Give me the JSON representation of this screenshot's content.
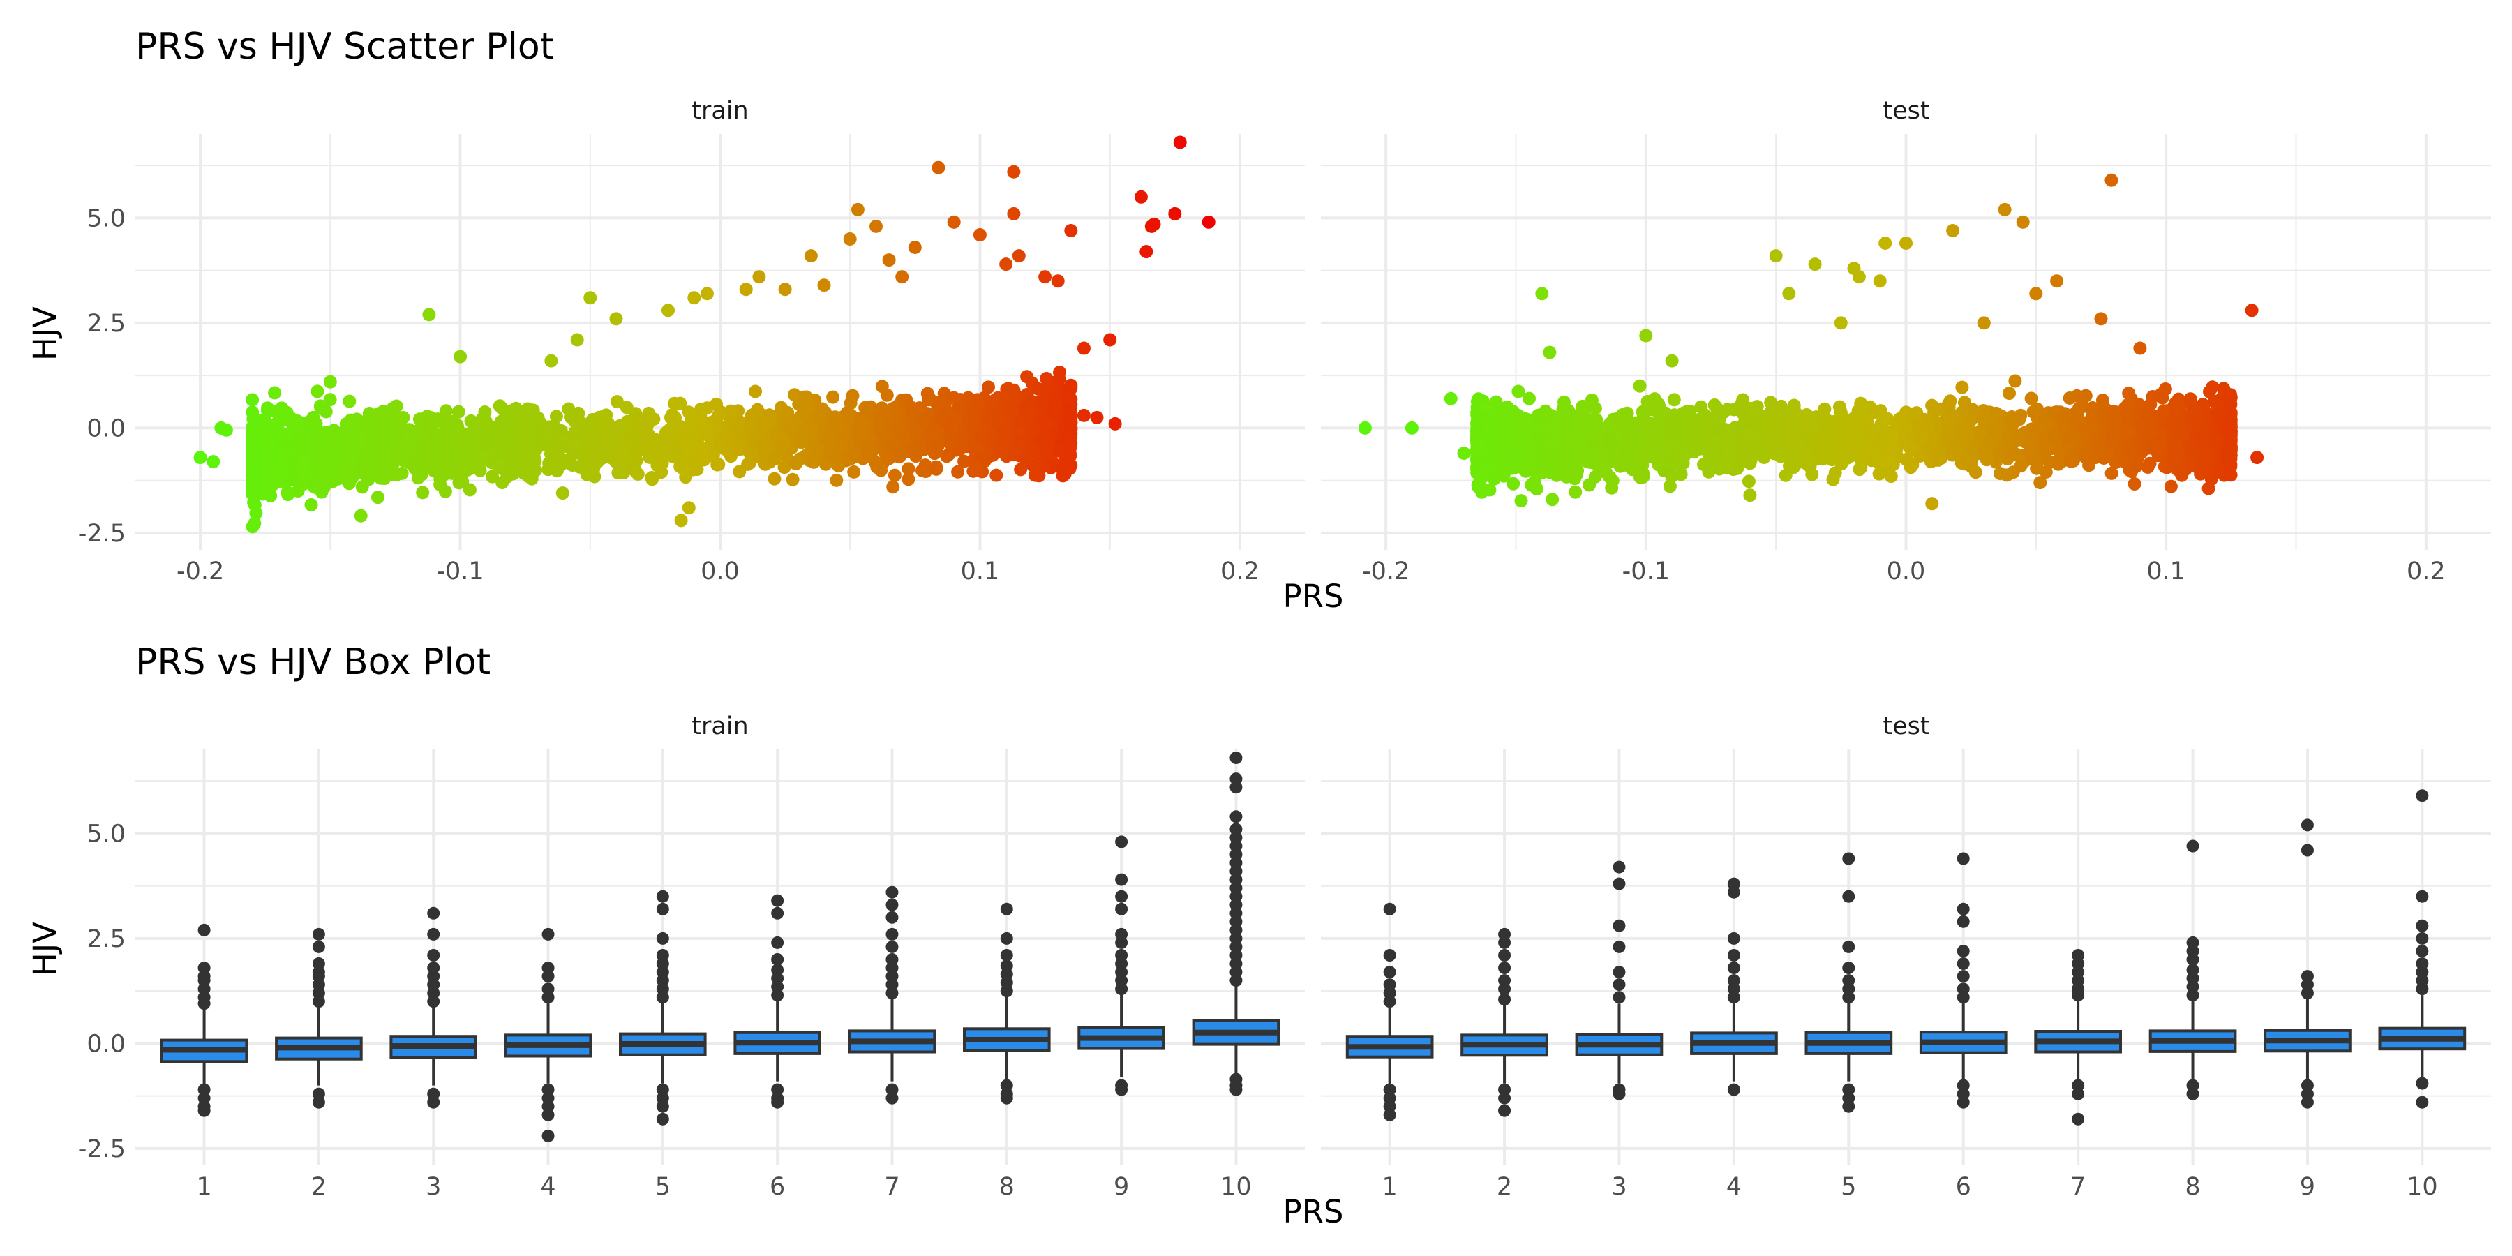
{
  "chart_data": [
    {
      "type": "scatter",
      "title": "PRS vs HJV Scatter Plot",
      "xlabel": "PRS",
      "ylabel": "HJV",
      "grid": true,
      "color_scale": {
        "low": "#5af50a",
        "mid": "#c4b400",
        "high": "#f00000",
        "mapped_to": "PRS"
      },
      "xlim": [
        -0.225,
        0.225
      ],
      "ylim": [
        -2.9,
        7.0
      ],
      "xticks": [
        -0.2,
        -0.1,
        0.0,
        0.1,
        0.2
      ],
      "xtick_labels": [
        "-0.2",
        "-0.1",
        "0.0",
        "0.1",
        "0.2"
      ],
      "yticks": [
        -2.5,
        0.0,
        2.5,
        5.0
      ],
      "ytick_labels": [
        "-2.5",
        "0.0",
        "2.5",
        "5.0"
      ],
      "panels": [
        {
          "label": "train",
          "cloud": {
            "x_range": [
              -0.18,
              0.135
            ],
            "slope": 4.5,
            "spread": 0.42
          },
          "points": [
            {
              "x": -0.2,
              "y": -0.7
            },
            {
              "x": -0.195,
              "y": -0.8
            },
            {
              "x": -0.19,
              "y": -0.05
            },
            {
              "x": -0.192,
              "y": 0.0
            },
            {
              "x": -0.15,
              "y": 1.1
            },
            {
              "x": -0.112,
              "y": 2.7
            },
            {
              "x": -0.1,
              "y": 1.7
            },
            {
              "x": -0.065,
              "y": 1.6
            },
            {
              "x": -0.055,
              "y": 2.1
            },
            {
              "x": -0.05,
              "y": 3.1
            },
            {
              "x": -0.04,
              "y": 2.6
            },
            {
              "x": -0.02,
              "y": 2.8
            },
            {
              "x": -0.015,
              "y": -2.2
            },
            {
              "x": -0.012,
              "y": -1.9
            },
            {
              "x": -0.01,
              "y": 3.1
            },
            {
              "x": -0.005,
              "y": 3.2
            },
            {
              "x": 0.01,
              "y": 3.3
            },
            {
              "x": 0.015,
              "y": 3.6
            },
            {
              "x": 0.025,
              "y": 3.3
            },
            {
              "x": 0.035,
              "y": 4.1
            },
            {
              "x": 0.04,
              "y": 3.4
            },
            {
              "x": 0.05,
              "y": 4.5
            },
            {
              "x": 0.053,
              "y": 5.2
            },
            {
              "x": 0.06,
              "y": 4.8
            },
            {
              "x": 0.065,
              "y": 4.0
            },
            {
              "x": 0.07,
              "y": 3.6
            },
            {
              "x": 0.075,
              "y": 4.3
            },
            {
              "x": 0.084,
              "y": 6.2
            },
            {
              "x": 0.09,
              "y": 4.9
            },
            {
              "x": 0.1,
              "y": 4.6
            },
            {
              "x": 0.098,
              "y": -0.9
            },
            {
              "x": 0.11,
              "y": 3.9
            },
            {
              "x": 0.113,
              "y": 5.1
            },
            {
              "x": 0.113,
              "y": 6.1
            },
            {
              "x": 0.115,
              "y": 4.1
            },
            {
              "x": 0.125,
              "y": 3.6
            },
            {
              "x": 0.13,
              "y": 3.5
            },
            {
              "x": 0.135,
              "y": 4.7
            },
            {
              "x": 0.14,
              "y": 1.9
            },
            {
              "x": 0.15,
              "y": 2.1
            },
            {
              "x": 0.14,
              "y": 0.3
            },
            {
              "x": 0.145,
              "y": 0.25
            },
            {
              "x": 0.152,
              "y": 0.1
            },
            {
              "x": 0.162,
              "y": 5.5
            },
            {
              "x": 0.164,
              "y": 4.2
            },
            {
              "x": 0.166,
              "y": 4.8
            },
            {
              "x": 0.167,
              "y": 4.85
            },
            {
              "x": 0.175,
              "y": 5.1
            },
            {
              "x": 0.177,
              "y": 6.8
            },
            {
              "x": 0.188,
              "y": 4.9
            }
          ]
        },
        {
          "label": "test",
          "cloud": {
            "x_range": [
              -0.165,
              0.125
            ],
            "slope": 1.5,
            "spread": 0.4
          },
          "points": [
            {
              "x": -0.208,
              "y": 0.0
            },
            {
              "x": -0.19,
              "y": 0.0
            },
            {
              "x": -0.175,
              "y": 0.7
            },
            {
              "x": -0.17,
              "y": -0.6
            },
            {
              "x": -0.14,
              "y": 3.2
            },
            {
              "x": -0.137,
              "y": 1.8
            },
            {
              "x": -0.136,
              "y": -1.7
            },
            {
              "x": -0.1,
              "y": 2.2
            },
            {
              "x": -0.09,
              "y": 1.6
            },
            {
              "x": -0.06,
              "y": -1.6
            },
            {
              "x": -0.05,
              "y": 4.1
            },
            {
              "x": -0.045,
              "y": 3.2
            },
            {
              "x": -0.035,
              "y": 3.9
            },
            {
              "x": -0.025,
              "y": 2.5
            },
            {
              "x": -0.02,
              "y": 3.8
            },
            {
              "x": -0.018,
              "y": 3.6
            },
            {
              "x": -0.01,
              "y": 3.5
            },
            {
              "x": -0.008,
              "y": 4.4
            },
            {
              "x": 0.0,
              "y": 4.4
            },
            {
              "x": 0.01,
              "y": -1.8
            },
            {
              "x": 0.018,
              "y": 4.7
            },
            {
              "x": 0.03,
              "y": 2.5
            },
            {
              "x": 0.038,
              "y": 5.2
            },
            {
              "x": 0.045,
              "y": 4.9
            },
            {
              "x": 0.05,
              "y": 3.2
            },
            {
              "x": 0.058,
              "y": 3.5
            },
            {
              "x": 0.079,
              "y": 5.9
            },
            {
              "x": 0.075,
              "y": 2.6
            },
            {
              "x": 0.09,
              "y": 1.9
            },
            {
              "x": 0.12,
              "y": 0.5
            },
            {
              "x": 0.122,
              "y": 0.3
            },
            {
              "x": 0.133,
              "y": 2.8
            },
            {
              "x": 0.135,
              "y": -0.7
            }
          ]
        }
      ]
    },
    {
      "type": "box",
      "title": "PRS vs HJV Box Plot",
      "xlabel": "PRS",
      "ylabel": "HJV",
      "grid": true,
      "box_color": "#2a8be8",
      "line_color": "#333333",
      "categories": [
        "1",
        "2",
        "3",
        "4",
        "5",
        "6",
        "7",
        "8",
        "9",
        "10"
      ],
      "ylim": [
        -2.9,
        7.0
      ],
      "yticks": [
        -2.5,
        0.0,
        2.5,
        5.0
      ],
      "ytick_labels": [
        "-2.5",
        "0.0",
        "2.5",
        "5.0"
      ],
      "panels": [
        {
          "label": "train",
          "boxes": [
            {
              "category": "1",
              "q1": -0.43,
              "median": -0.15,
              "q3": 0.08,
              "lower": -1.0,
              "upper": 0.85,
              "outliers": [
                0.95,
                1.1,
                1.3,
                1.5,
                1.6,
                1.8,
                2.7,
                -1.1,
                -1.3,
                -1.5,
                -1.6
              ]
            },
            {
              "category": "2",
              "q1": -0.37,
              "median": -0.1,
              "q3": 0.13,
              "lower": -1.0,
              "upper": 0.9,
              "outliers": [
                1.0,
                1.2,
                1.4,
                1.6,
                1.7,
                1.9,
                2.3,
                2.6,
                -1.2,
                -1.4
              ]
            },
            {
              "category": "3",
              "q1": -0.33,
              "median": -0.06,
              "q3": 0.17,
              "lower": -1.0,
              "upper": 0.95,
              "outliers": [
                1.0,
                1.2,
                1.4,
                1.6,
                1.8,
                2.1,
                2.6,
                3.1,
                -1.2,
                -1.4
              ]
            },
            {
              "category": "4",
              "q1": -0.3,
              "median": -0.04,
              "q3": 0.2,
              "lower": -0.95,
              "upper": 1.0,
              "outliers": [
                1.1,
                1.3,
                1.6,
                1.8,
                2.6,
                -1.1,
                -1.3,
                -1.5,
                -1.7,
                -2.2
              ]
            },
            {
              "category": "5",
              "q1": -0.27,
              "median": -0.01,
              "q3": 0.23,
              "lower": -0.95,
              "upper": 1.0,
              "outliers": [
                1.1,
                1.3,
                1.5,
                1.7,
                1.9,
                2.1,
                2.5,
                3.2,
                3.5,
                -1.1,
                -1.3,
                -1.5,
                -1.8
              ]
            },
            {
              "category": "6",
              "q1": -0.24,
              "median": 0.02,
              "q3": 0.26,
              "lower": -0.9,
              "upper": 1.05,
              "outliers": [
                1.15,
                1.35,
                1.55,
                1.75,
                2.0,
                2.4,
                3.1,
                3.4,
                -1.1,
                -1.3,
                -1.4
              ]
            },
            {
              "category": "7",
              "q1": -0.2,
              "median": 0.05,
              "q3": 0.3,
              "lower": -0.9,
              "upper": 1.1,
              "outliers": [
                1.2,
                1.4,
                1.6,
                1.8,
                2.0,
                2.3,
                2.6,
                3.0,
                3.3,
                3.6,
                -1.1,
                -1.3
              ]
            },
            {
              "category": "8",
              "q1": -0.16,
              "median": 0.09,
              "q3": 0.35,
              "lower": -0.85,
              "upper": 1.15,
              "outliers": [
                1.25,
                1.45,
                1.65,
                1.85,
                2.1,
                2.5,
                3.2,
                -1.0,
                -1.2,
                -1.3
              ]
            },
            {
              "category": "9",
              "q1": -0.12,
              "median": 0.13,
              "q3": 0.38,
              "lower": -0.8,
              "upper": 1.2,
              "outliers": [
                1.3,
                1.5,
                1.7,
                1.9,
                2.1,
                2.4,
                2.6,
                3.2,
                3.5,
                3.9,
                4.8,
                -1.0,
                -1.1
              ]
            },
            {
              "category": "10",
              "q1": -0.02,
              "median": 0.26,
              "q3": 0.55,
              "lower": -0.75,
              "upper": 1.4,
              "outliers": [
                1.5,
                1.7,
                1.9,
                2.1,
                2.3,
                2.5,
                2.7,
                2.9,
                3.1,
                3.3,
                3.5,
                3.7,
                3.9,
                4.1,
                4.3,
                4.5,
                4.7,
                4.9,
                5.1,
                5.4,
                6.1,
                6.3,
                6.8,
                -0.85,
                -1.0,
                -1.1
              ]
            }
          ]
        },
        {
          "label": "test",
          "boxes": [
            {
              "category": "1",
              "q1": -0.32,
              "median": -0.08,
              "q3": 0.17,
              "lower": -1.0,
              "upper": 0.9,
              "outliers": [
                1.0,
                1.2,
                1.4,
                1.7,
                2.1,
                3.2,
                -1.1,
                -1.3,
                -1.5,
                -1.7
              ]
            },
            {
              "category": "2",
              "q1": -0.28,
              "median": -0.03,
              "q3": 0.2,
              "lower": -0.95,
              "upper": 0.95,
              "outliers": [
                1.05,
                1.3,
                1.5,
                1.8,
                2.1,
                2.4,
                2.6,
                -1.1,
                -1.3,
                -1.6
              ]
            },
            {
              "category": "3",
              "q1": -0.27,
              "median": -0.03,
              "q3": 0.21,
              "lower": -0.95,
              "upper": 0.95,
              "outliers": [
                1.1,
                1.4,
                1.7,
                2.3,
                2.8,
                3.8,
                4.2,
                -1.1,
                -1.2
              ]
            },
            {
              "category": "4",
              "q1": -0.24,
              "median": 0.01,
              "q3": 0.25,
              "lower": -0.9,
              "upper": 1.0,
              "outliers": [
                1.1,
                1.3,
                1.5,
                1.8,
                2.1,
                2.5,
                3.6,
                3.8,
                -1.1
              ]
            },
            {
              "category": "5",
              "q1": -0.24,
              "median": 0.01,
              "q3": 0.26,
              "lower": -0.9,
              "upper": 1.0,
              "outliers": [
                1.1,
                1.3,
                1.5,
                1.8,
                2.3,
                3.5,
                4.4,
                -1.1,
                -1.3,
                -1.5
              ]
            },
            {
              "category": "6",
              "q1": -0.22,
              "median": 0.03,
              "q3": 0.27,
              "lower": -0.9,
              "upper": 1.0,
              "outliers": [
                1.1,
                1.3,
                1.6,
                1.9,
                2.2,
                2.9,
                3.2,
                4.4,
                -1.0,
                -1.2,
                -1.4
              ]
            },
            {
              "category": "7",
              "q1": -0.2,
              "median": 0.05,
              "q3": 0.29,
              "lower": -0.9,
              "upper": 1.05,
              "outliers": [
                1.15,
                1.3,
                1.5,
                1.7,
                1.9,
                2.1,
                -1.0,
                -1.2,
                -1.8
              ]
            },
            {
              "category": "8",
              "q1": -0.19,
              "median": 0.06,
              "q3": 0.3,
              "lower": -0.85,
              "upper": 1.05,
              "outliers": [
                1.15,
                1.35,
                1.55,
                1.75,
                2.0,
                2.2,
                2.4,
                4.7,
                -1.0,
                -1.2
              ]
            },
            {
              "category": "9",
              "q1": -0.18,
              "median": 0.07,
              "q3": 0.31,
              "lower": -0.85,
              "upper": 1.1,
              "outliers": [
                1.2,
                1.4,
                1.6,
                4.6,
                5.2,
                -1.0,
                -1.2,
                -1.4
              ]
            },
            {
              "category": "10",
              "q1": -0.13,
              "median": 0.11,
              "q3": 0.36,
              "lower": -0.8,
              "upper": 1.15,
              "outliers": [
                1.3,
                1.5,
                1.7,
                1.9,
                2.2,
                2.5,
                2.8,
                3.5,
                5.9,
                -0.95,
                -1.4
              ]
            }
          ]
        }
      ]
    }
  ]
}
